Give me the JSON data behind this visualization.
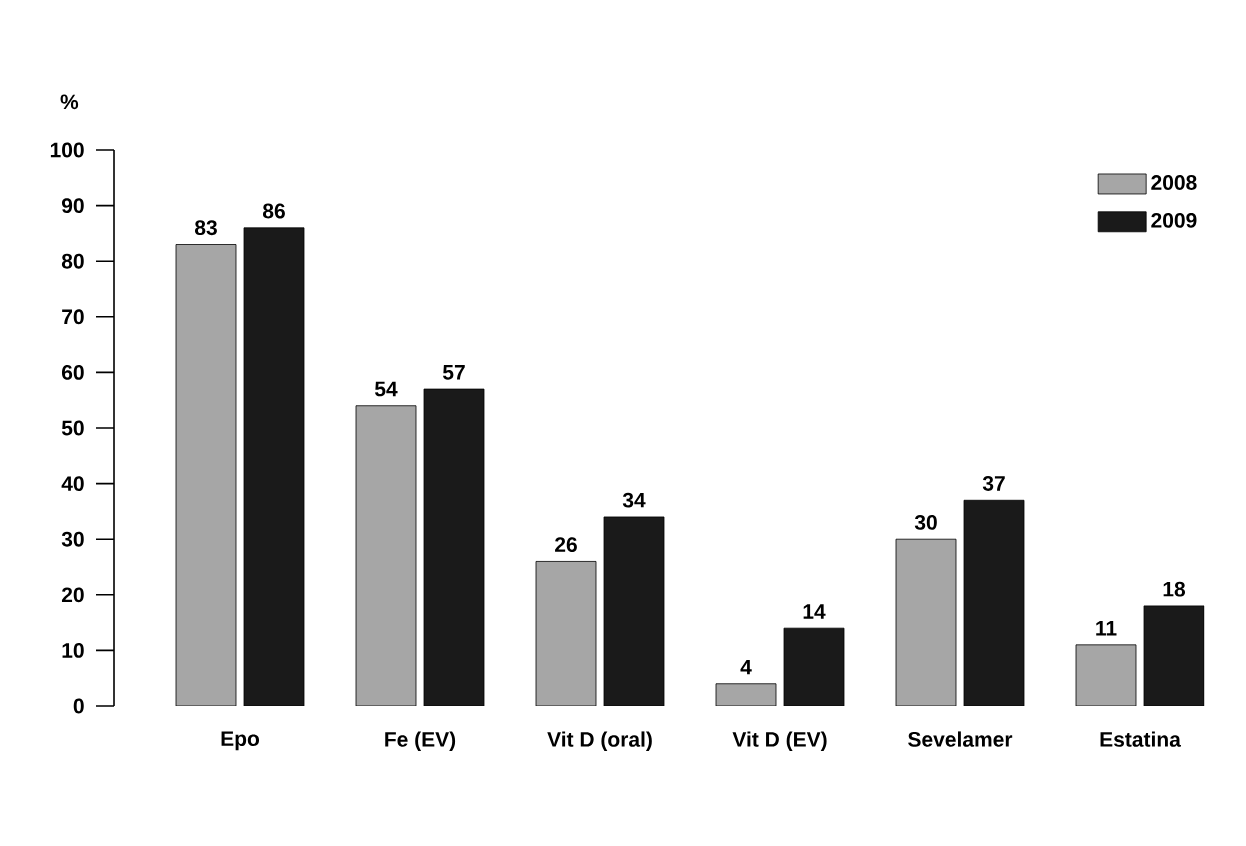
{
  "chart_data": {
    "type": "bar",
    "ylabel": "%",
    "categories": [
      "Epo",
      "Fe (EV)",
      "Vit D (oral)",
      "Vit D (EV)",
      "Sevelamer",
      "Estatina"
    ],
    "series": [
      {
        "name": "2008",
        "color": "#a6a6a6",
        "values": [
          83,
          54,
          26,
          4,
          30,
          11
        ]
      },
      {
        "name": "2009",
        "color": "#1a1a1a",
        "values": [
          86,
          57,
          34,
          14,
          37,
          18
        ]
      }
    ],
    "ylim": [
      0,
      100
    ],
    "yticks": [
      0,
      10,
      20,
      30,
      40,
      50,
      60,
      70,
      80,
      90,
      100
    ],
    "data_labels": true,
    "legend": "top right"
  }
}
